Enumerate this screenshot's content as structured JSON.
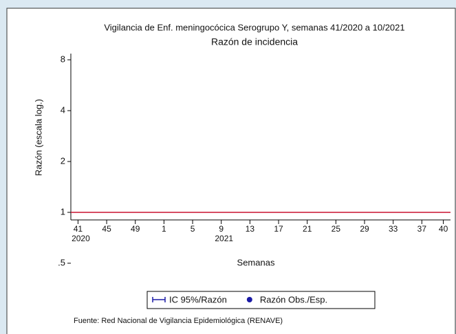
{
  "chart_data": {
    "type": "line",
    "title": "Vigilancia de Enf. meningocócica Serogrupo Y, semanas 41/2020 a 10/2021",
    "subtitle": "Razón de incidencia",
    "y_label": "Razón (escala log.)",
    "x_label": "Semanas",
    "source": "Fuente: Red Nacional de Vigilancia Epidemiológica (RENAVE)",
    "log_y": true,
    "ylim": [
      0.5,
      8
    ],
    "yticks": [
      {
        "value": 0.5,
        "label": ".5"
      },
      1,
      2,
      4,
      8
    ],
    "xlim": [
      -1,
      52
    ],
    "xticks": [
      {
        "value": 0,
        "label": "41"
      },
      {
        "value": 4,
        "label": "45"
      },
      {
        "value": 8,
        "label": "49"
      },
      {
        "value": 12,
        "label": "1"
      },
      {
        "value": 16,
        "label": "5"
      },
      {
        "value": 20,
        "label": "9"
      },
      {
        "value": 24,
        "label": "13"
      },
      {
        "value": 28,
        "label": "17"
      },
      {
        "value": 32,
        "label": "21"
      },
      {
        "value": 36,
        "label": "25"
      },
      {
        "value": 40,
        "label": "29"
      },
      {
        "value": 44,
        "label": "33"
      },
      {
        "value": 48,
        "label": "37"
      },
      {
        "value": 51,
        "label": "40"
      }
    ],
    "year_labels": [
      {
        "value": 0,
        "label": "2020"
      },
      {
        "value": 20,
        "label": "2021"
      }
    ],
    "reference_line": {
      "value": 1,
      "color": "#c8102e"
    },
    "x": [],
    "series": [
      {
        "name": "IC 95%/Razón",
        "color": "#1a1aa6",
        "marker": "errorbar",
        "values": []
      },
      {
        "name": "Razón Obs./Esp.",
        "color": "#1a1aa6",
        "marker": "dot",
        "values": []
      }
    ]
  }
}
